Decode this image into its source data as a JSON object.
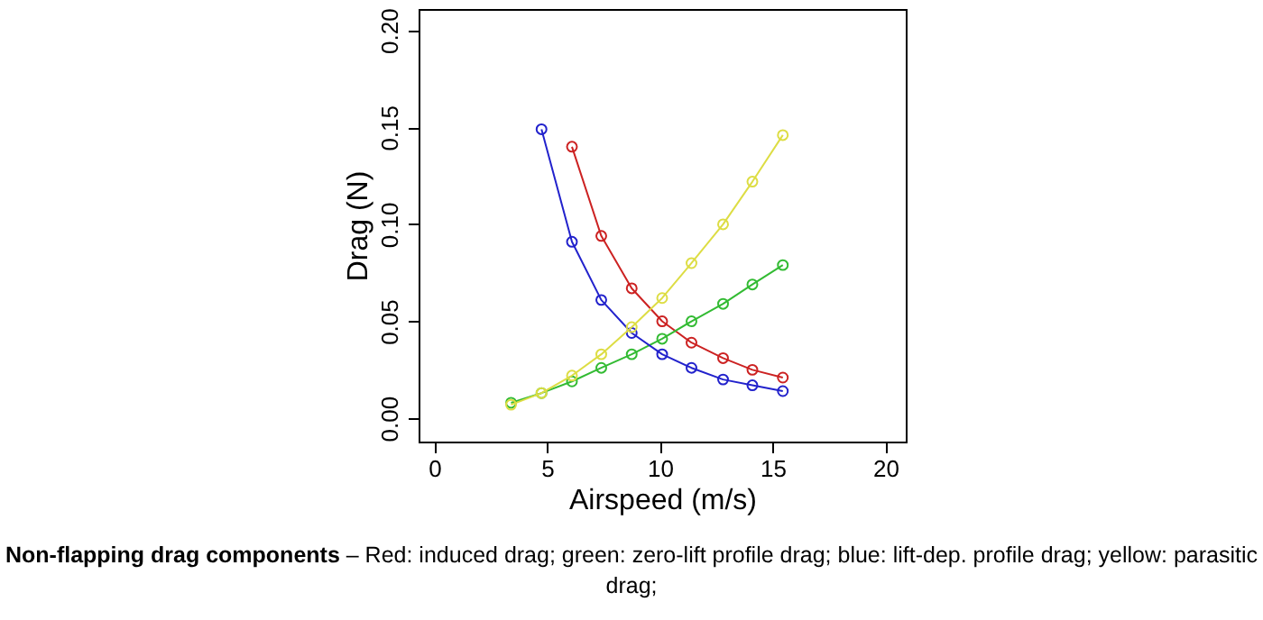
{
  "chart_data": {
    "type": "line",
    "xlabel": "Airspeed (m/s)",
    "ylabel": "Drag (N)",
    "x": [
      3.4,
      4.75,
      6.1,
      7.4,
      8.75,
      10.1,
      11.4,
      12.8,
      14.1,
      15.45
    ],
    "series": [
      {
        "color": "#cc2222",
        "values": [
          null,
          null,
          0.14,
          0.094,
          0.067,
          0.05,
          0.039,
          0.031,
          0.025,
          0.021
        ]
      },
      {
        "color": "#33bb33",
        "values": [
          0.008,
          0.013,
          0.019,
          0.026,
          0.033,
          0.041,
          0.05,
          0.059,
          0.069,
          0.079
        ]
      },
      {
        "color": "#2222cc",
        "values": [
          null,
          0.149,
          0.091,
          0.061,
          0.044,
          0.033,
          0.026,
          0.02,
          0.017,
          0.014
        ]
      },
      {
        "color": "#dddd44",
        "values": [
          0.007,
          0.013,
          0.022,
          0.033,
          0.047,
          0.062,
          0.08,
          0.1,
          0.122,
          0.146
        ]
      }
    ],
    "xlim": [
      -0.7,
      20.9
    ],
    "ylim": [
      -0.012,
      0.211
    ],
    "xticks": [
      0,
      5,
      10,
      15,
      20
    ],
    "yticks": [
      {
        "value": 0,
        "label": "0.00"
      },
      {
        "value": 0.05,
        "label": "0.05"
      },
      {
        "value": 0.1,
        "label": "0.10"
      },
      {
        "value": 0.15,
        "label": "0.15"
      },
      {
        "value": 0.2,
        "label": "0.20"
      }
    ],
    "grid": false,
    "marker": "circle",
    "line_style": "solid",
    "annotations": [
      "Non-flapping drag components",
      "– Red: induced drag; green: zero-lift profile drag; blue: lift-dep. profile drag; yellow: parasitic drag;"
    ]
  }
}
